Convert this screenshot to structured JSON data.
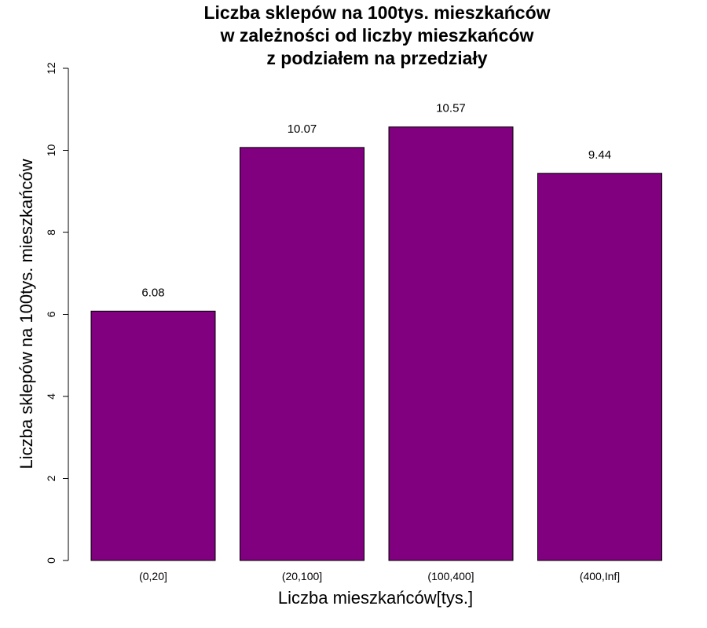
{
  "chart_data": {
    "type": "bar",
    "title_lines": [
      "Liczba sklepów na 100tys. mieszkańców",
      "w zależności od liczby mieszkańców",
      "z podziałem na przedziały"
    ],
    "xlabel": "Liczba mieszkańców[tys.]",
    "ylabel": "Liczba sklepów na 100tys. mieszkańców",
    "categories": [
      "(0,20]",
      "(20,100]",
      "(100,400]",
      "(400,Inf]"
    ],
    "values": [
      6.08,
      10.07,
      10.57,
      9.44
    ],
    "value_labels": [
      "6.08",
      "10.07",
      "10.57",
      "9.44"
    ],
    "ylim": [
      0,
      12
    ],
    "yticks": [
      0,
      2,
      4,
      6,
      8,
      10,
      12
    ],
    "ytick_labels": [
      "0",
      "2",
      "4",
      "6",
      "8",
      "10",
      "12"
    ],
    "bar_color": "#800080",
    "bar_border_color": "#000000",
    "grid": false,
    "legend": "none"
  }
}
